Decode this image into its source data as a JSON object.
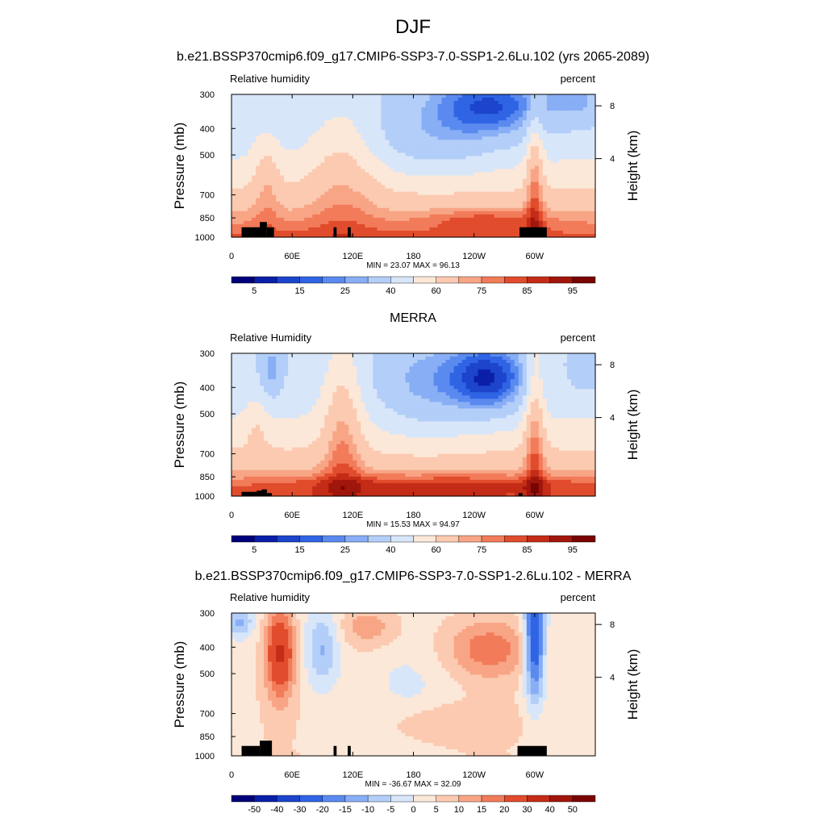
{
  "figure": {
    "title": "DJF"
  },
  "chart_data": [
    {
      "type": "heatmap",
      "title": "b.e21.BSSP370cmip6.f09_g17.CMIP6-SSP3-7.0-SSP1-2.6Lu.102 (yrs 2065-2089)",
      "left_label": "Relative humidity",
      "right_label": "percent",
      "ylabel": "Pressure (mb)",
      "y2label": "Height (km)",
      "x_ticks": [
        "0",
        "60E",
        "120E",
        "180",
        "120W",
        "60W"
      ],
      "y_ticks": [
        "300",
        "400",
        "500",
        "700",
        "850",
        "1000"
      ],
      "y2_ticks": [
        "8",
        "4"
      ],
      "min_label": "MIN =  23.07",
      "max_label": "MAX =  96.13",
      "min": 23.07,
      "max": 96.13,
      "colorbar_labels": [
        "5",
        "15",
        "25",
        "40",
        "60",
        "75",
        "85",
        "95"
      ],
      "colormap": "sequential"
    },
    {
      "type": "heatmap",
      "title": "MERRA",
      "left_label": "Relative Humidity",
      "right_label": "percent",
      "ylabel": "Pressure (mb)",
      "y2label": "Height (km)",
      "x_ticks": [
        "0",
        "60E",
        "120E",
        "180",
        "120W",
        "60W"
      ],
      "y_ticks": [
        "300",
        "400",
        "500",
        "700",
        "850",
        "1000"
      ],
      "y2_ticks": [
        "8",
        "4"
      ],
      "min_label": "MIN =  15.53",
      "max_label": "MAX =  94.97",
      "min": 15.53,
      "max": 94.97,
      "colorbar_labels": [
        "5",
        "15",
        "25",
        "40",
        "60",
        "75",
        "85",
        "95"
      ],
      "colormap": "sequential"
    },
    {
      "type": "heatmap",
      "title": "b.e21.BSSP370cmip6.f09_g17.CMIP6-SSP3-7.0-SSP1-2.6Lu.102 - MERRA",
      "left_label": "Relative humidity",
      "right_label": "percent",
      "ylabel": "Pressure (mb)",
      "y2label": "Height (km)",
      "x_ticks": [
        "0",
        "60E",
        "120E",
        "180",
        "120W",
        "60W"
      ],
      "y_ticks": [
        "300",
        "400",
        "500",
        "700",
        "850",
        "1000"
      ],
      "y2_ticks": [
        "8",
        "4"
      ],
      "min_label": "MIN = -36.67",
      "max_label": "MAX =  32.09",
      "min": -36.67,
      "max": 32.09,
      "colorbar_labels": [
        "-50",
        "-40",
        "-30",
        "-20",
        "-15",
        "-10",
        "-5",
        "0",
        "5",
        "10",
        "15",
        "20",
        "30",
        "40",
        "50"
      ],
      "colormap": "diverging"
    }
  ],
  "palette": [
    "#00007a",
    "#0a1fa8",
    "#1c44cc",
    "#2f64e4",
    "#5a8aef",
    "#88aef5",
    "#b3cef8",
    "#d8e6fa",
    "#fce8d8",
    "#fbcab0",
    "#f8a586",
    "#f27b5a",
    "#e04c2c",
    "#c42c17",
    "#a1160c",
    "#7a0403"
  ]
}
